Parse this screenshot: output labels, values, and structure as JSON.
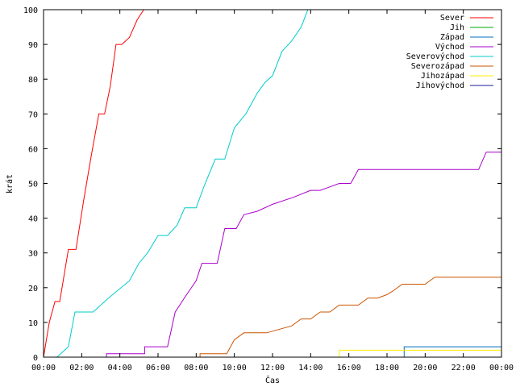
{
  "chart_data": {
    "type": "line",
    "xlabel": "Čas",
    "ylabel": "krát",
    "xlim": [
      0,
      24
    ],
    "ylim": [
      0,
      100
    ],
    "x_ticks": [
      {
        "value": 0,
        "label": "00:00"
      },
      {
        "value": 2,
        "label": "02:00"
      },
      {
        "value": 4,
        "label": "04:00"
      },
      {
        "value": 6,
        "label": "06:00"
      },
      {
        "value": 8,
        "label": "08:00"
      },
      {
        "value": 10,
        "label": "10:00"
      },
      {
        "value": 12,
        "label": "12:00"
      },
      {
        "value": 14,
        "label": "14:00"
      },
      {
        "value": 16,
        "label": "16:00"
      },
      {
        "value": 18,
        "label": "18:00"
      },
      {
        "value": 20,
        "label": "20:00"
      },
      {
        "value": 22,
        "label": "22:00"
      },
      {
        "value": 24,
        "label": "00:00"
      }
    ],
    "y_ticks": [
      0,
      10,
      20,
      30,
      40,
      50,
      60,
      70,
      80,
      90,
      100
    ],
    "grid": false,
    "legend_position": "top-right",
    "series": [
      {
        "name": "Sever",
        "color": "#ff0000",
        "x": [
          0,
          0.3,
          0.6,
          0.85,
          1.3,
          1.7,
          2.1,
          2.5,
          2.9,
          3.2,
          3.5,
          3.8,
          4.1,
          4.5,
          4.9,
          5.25
        ],
        "y": [
          0,
          10,
          16,
          16,
          31,
          31,
          45,
          58,
          70,
          70,
          78,
          90,
          90,
          92,
          97,
          100
        ]
      },
      {
        "name": "Jih",
        "color": "#00aa00",
        "x": [
          0,
          24
        ],
        "y": [
          0,
          0
        ]
      },
      {
        "name": "Západ",
        "color": "#0070c0",
        "x": [
          0,
          18.9,
          18.9,
          24
        ],
        "y": [
          0,
          0,
          3,
          3
        ]
      },
      {
        "name": "Východ",
        "color": "#aa00cc",
        "x": [
          0,
          3.3,
          3.3,
          5.3,
          5.3,
          6.5,
          6.9,
          7.5,
          8,
          8.3,
          9.1,
          9.5,
          10.1,
          10.5,
          11.2,
          12,
          13.1,
          14,
          14.5,
          15,
          15.5,
          16.1,
          16.5,
          18,
          19,
          20,
          21,
          22,
          22.8,
          23.2,
          24
        ],
        "y": [
          0,
          0,
          1,
          1,
          3,
          3,
          13,
          18,
          22,
          27,
          27,
          37,
          37,
          41,
          42,
          44,
          46,
          48,
          48,
          49,
          50,
          50,
          54,
          54,
          54,
          54,
          54,
          54,
          54,
          59,
          59
        ]
      },
      {
        "name": "Severovýchod",
        "color": "#00cccc",
        "x": [
          0,
          0.7,
          1.3,
          1.65,
          2.6,
          3.4,
          4.5,
          5,
          5.45,
          6,
          6.5,
          7,
          7.4,
          8,
          8.4,
          9,
          9.5,
          10,
          10.6,
          11.2,
          11.6,
          12,
          12.5,
          13,
          13.5,
          13.85
        ],
        "y": [
          0,
          0,
          3,
          13,
          13,
          17,
          22,
          27,
          30,
          35,
          35,
          38,
          43,
          43,
          49,
          57,
          57,
          66,
          70,
          76,
          79,
          81,
          88,
          91,
          95,
          100
        ]
      },
      {
        "name": "Severozápad",
        "color": "#cc5500",
        "x": [
          0,
          8.2,
          8.2,
          9.6,
          10,
          10.5,
          11.7,
          13,
          13.5,
          14,
          14.5,
          15,
          15.5,
          16,
          16.5,
          17,
          17.5,
          18,
          18.3,
          18.8,
          19.5,
          20,
          20.5,
          21,
          24
        ],
        "y": [
          0,
          0,
          1,
          1,
          5,
          7,
          7,
          9,
          11,
          11,
          13,
          13,
          15,
          15,
          15,
          17,
          17,
          18,
          19,
          21,
          21,
          21,
          23,
          23,
          23
        ]
      },
      {
        "name": "Jihozápad",
        "color": "#ffee00",
        "x": [
          0,
          15.5,
          15.5,
          24
        ],
        "y": [
          0,
          0,
          2,
          2
        ]
      },
      {
        "name": "Jihovýchod",
        "color": "#1a1aa0",
        "x": [
          0,
          24
        ],
        "y": [
          0,
          0
        ]
      }
    ]
  }
}
